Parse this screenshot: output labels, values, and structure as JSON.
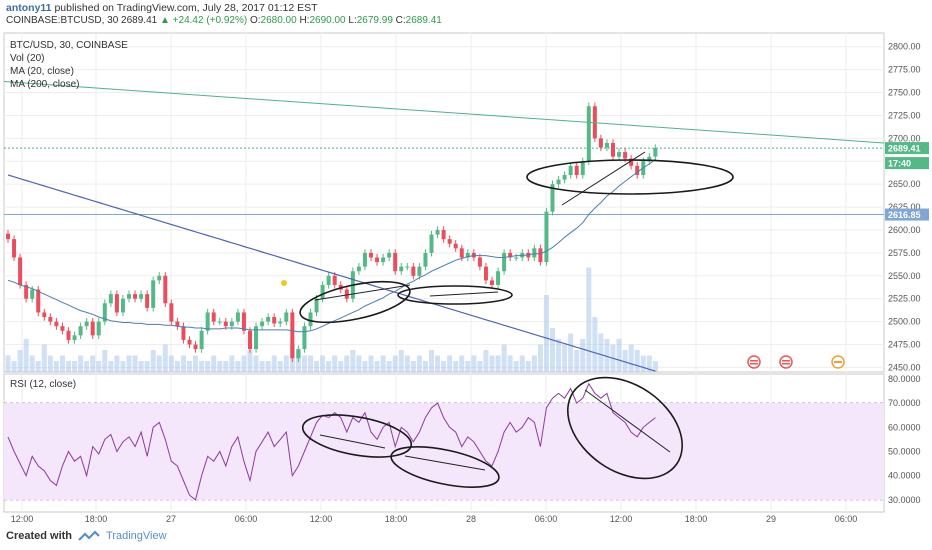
{
  "header": {
    "author": "antony11",
    "published": "published on TradingView.com, July 28, 2017 01:12 EST",
    "symbol": "COINBASE:BTCUSD,",
    "period": "30",
    "price": "2689.41",
    "change": "+24.42 (+0.92%)",
    "open_label": "O:",
    "open": "2680.00",
    "high_label": "H:",
    "high": "2690.00",
    "low_label": "L:",
    "low": "2679.99",
    "close_label": "C:",
    "close": "2689.41"
  },
  "legend": {
    "title": "BTC/USD, 30, COINBASE",
    "vol": "Vol (20)",
    "ma20": "MA (20, close)",
    "ma200": "MA (200, close)",
    "rsi": "RSI (12, close)"
  },
  "footer": {
    "created_with": "Created with",
    "brand": "TradingView"
  },
  "colors": {
    "up": "#53b987",
    "down": "#eb4d5c",
    "ma20": "#4a7fb0",
    "ma200": "#4e66b3",
    "trend": "#4cb28f",
    "rsi": "#8e3a9e",
    "rsi_bg": "#f4e6fb",
    "vol": "#a9c6ec"
  },
  "chart_data": [
    {
      "type": "candlestick",
      "title": "BTC/USD, 30, COINBASE",
      "x_ticks": [
        "12:00",
        "18:00",
        "27",
        "06:00",
        "12:00",
        "18:00",
        "28",
        "06:00",
        "12:00",
        "18:00",
        "29",
        "06:00"
      ],
      "y_ticks": [
        2450,
        2475,
        2500,
        2525,
        2550,
        2575,
        2600,
        2625,
        2650,
        2675,
        2700,
        2725,
        2750,
        2775,
        2800
      ],
      "ylim": [
        2445,
        2815
      ],
      "price_labels": [
        {
          "text": "2689.41",
          "value": 2689.41
        },
        {
          "text": "17:40",
          "value": 2673
        },
        {
          "text": "2616.85",
          "value": 2616.85
        }
      ],
      "closes": [
        2590,
        2570,
        2540,
        2525,
        2535,
        2510,
        2505,
        2500,
        2495,
        2490,
        2480,
        2485,
        2495,
        2500,
        2485,
        2500,
        2520,
        2530,
        2510,
        2525,
        2530,
        2525,
        2530,
        2515,
        2545,
        2550,
        2520,
        2500,
        2495,
        2480,
        2475,
        2470,
        2490,
        2510,
        2500,
        2500,
        2495,
        2500,
        2510,
        2490,
        2470,
        2495,
        2500,
        2505,
        2498,
        2500,
        2510,
        2460,
        2470,
        2495,
        2510,
        2525,
        2540,
        2550,
        2540,
        2535,
        2525,
        2555,
        2560,
        2575,
        2570,
        2565,
        2570,
        2575,
        2555,
        2560,
        2560,
        2550,
        2560,
        2575,
        2595,
        2600,
        2590,
        2585,
        2580,
        2570,
        2575,
        2570,
        2560,
        2545,
        2540,
        2555,
        2575,
        2570,
        2570,
        2575,
        2570,
        2580,
        2565,
        2620,
        2650,
        2655,
        2660,
        2670,
        2660,
        2675,
        2735,
        2700,
        2690,
        2695,
        2680,
        2685,
        2678,
        2670,
        2660,
        2675,
        2680,
        2689.41
      ],
      "volume_ylim": [
        0,
        20
      ],
      "volumes": [
        3,
        2,
        4,
        6,
        3,
        2,
        5,
        3,
        2,
        3,
        2,
        2,
        3,
        2,
        3,
        2,
        4,
        2,
        3,
        2,
        3,
        3,
        2,
        2,
        4,
        3,
        5,
        3,
        2,
        3,
        2,
        3,
        2,
        2,
        3,
        2,
        2,
        3,
        2,
        3,
        4,
        3,
        2,
        2,
        3,
        2,
        3,
        5,
        4,
        3,
        3,
        2,
        3,
        2,
        3,
        2,
        3,
        4,
        3,
        2,
        3,
        2,
        3,
        2,
        3,
        4,
        3,
        2,
        3,
        2,
        4,
        3,
        2,
        3,
        2,
        3,
        2,
        3,
        2,
        4,
        3,
        3,
        5,
        3,
        2,
        3,
        2,
        3,
        5,
        14,
        8,
        6,
        5,
        7,
        4,
        6,
        19,
        10,
        7,
        6,
        5,
        6,
        4,
        5,
        4,
        3,
        3,
        2
      ],
      "ma20": [
        2545,
        2543,
        2540,
        2538,
        2536,
        2533,
        2530,
        2527,
        2524,
        2521,
        2518,
        2515,
        2512,
        2510,
        2508,
        2505,
        2503,
        2501,
        2500,
        2499,
        2499,
        2498,
        2498,
        2497,
        2497,
        2497,
        2496,
        2496,
        2495,
        2494,
        2494,
        2493,
        2493,
        2492,
        2492,
        2492,
        2493,
        2493,
        2493,
        2492,
        2491,
        2491,
        2491,
        2491,
        2491,
        2491,
        2491,
        2490,
        2489,
        2489,
        2490,
        2492,
        2495,
        2498,
        2501,
        2504,
        2507,
        2510,
        2513,
        2517,
        2520,
        2523,
        2526,
        2530,
        2533,
        2537,
        2541,
        2544,
        2548,
        2551,
        2555,
        2558,
        2561,
        2564,
        2567,
        2569,
        2571,
        2572,
        2572,
        2572,
        2571,
        2570,
        2570,
        2571,
        2572,
        2572,
        2573,
        2574,
        2574,
        2577,
        2581,
        2586,
        2592,
        2597,
        2602,
        2608,
        2617,
        2624,
        2630,
        2637,
        2642,
        2648,
        2653,
        2658,
        2663,
        2668,
        2672,
        2677
      ],
      "ma200": [
        2660,
        2658,
        2656,
        2654,
        2652,
        2650,
        2648,
        2646,
        2644,
        2642,
        2640,
        2638,
        2636,
        2634,
        2632,
        2630,
        2628,
        2626,
        2624,
        2622,
        2620,
        2618,
        2616,
        2614,
        2612,
        2610,
        2608,
        2606,
        2604,
        2602,
        2600,
        2598,
        2596,
        2594,
        2592,
        2590,
        2588,
        2586,
        2584,
        2582,
        2580,
        2578,
        2576,
        2574,
        2572,
        2570,
        2568,
        2566,
        2564,
        2562,
        2560,
        2558,
        2556,
        2554,
        2552,
        2550,
        2548,
        2546,
        2544,
        2542,
        2540,
        2538,
        2536,
        2534,
        2532,
        2530,
        2528,
        2526,
        2524,
        2522,
        2520,
        2518,
        2516,
        2514,
        2512,
        2510,
        2508,
        2506,
        2504,
        2502,
        2500,
        2498,
        2496,
        2494,
        2492,
        2490,
        2488,
        2486,
        2484,
        2482,
        2480,
        2478,
        2476,
        2474,
        2472,
        2470,
        2468,
        2466,
        2464,
        2462,
        2460,
        2458,
        2456,
        2454,
        2452,
        2450,
        2448,
        2446
      ],
      "trendline": [
        2762,
        2695
      ]
    },
    {
      "type": "line",
      "title": "RSI (12, close)",
      "ylim": [
        25,
        82
      ],
      "y_ticks": [
        30,
        40,
        50,
        60,
        70,
        80
      ],
      "y_tick_labels": [
        "30.0000",
        "40.0000",
        "50.0000",
        "60.0000",
        "70.0000",
        "80.0000"
      ],
      "band": [
        30,
        70
      ],
      "values": [
        56,
        50,
        45,
        40,
        48,
        44,
        42,
        38,
        36,
        44,
        50,
        46,
        48,
        40,
        52,
        49,
        55,
        57,
        50,
        54,
        56,
        52,
        58,
        48,
        60,
        62,
        55,
        46,
        44,
        38,
        32,
        30,
        40,
        48,
        46,
        50,
        44,
        52,
        56,
        46,
        38,
        50,
        54,
        58,
        52,
        55,
        58,
        40,
        44,
        50,
        56,
        62,
        65,
        64,
        66,
        64,
        58,
        64,
        62,
        66,
        58,
        55,
        60,
        62,
        52,
        60,
        58,
        54,
        58,
        64,
        68,
        70,
        64,
        60,
        58,
        52,
        56,
        54,
        50,
        46,
        44,
        50,
        58,
        62,
        58,
        60,
        64,
        62,
        52,
        68,
        72,
        74,
        72,
        76,
        70,
        72,
        78,
        74,
        72,
        74,
        66,
        64,
        62,
        58,
        56,
        60,
        62,
        64
      ]
    }
  ]
}
